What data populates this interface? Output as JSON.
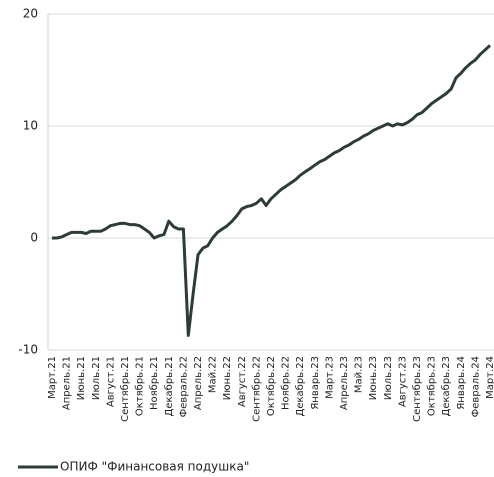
{
  "chart_data": {
    "type": "line",
    "categories": [
      "Март.21",
      null,
      null,
      "Апрель.21",
      null,
      null,
      "Июнь.21",
      null,
      null,
      "Июль.21",
      null,
      null,
      "Август.21",
      null,
      null,
      "Сентябрь.21",
      null,
      null,
      "Октябрь.21",
      null,
      null,
      "Ноябрь.21",
      null,
      null,
      "Декабрь.21",
      null,
      null,
      "Февраль.22",
      null,
      null,
      "Апрель.22",
      null,
      null,
      "Май.22",
      null,
      null,
      "Июнь.22",
      null,
      null,
      "Август.22",
      null,
      null,
      "Сентябрь.22",
      null,
      null,
      "Октябрь.22",
      null,
      null,
      "Ноябрь.22",
      null,
      null,
      "Декабрь.22",
      null,
      null,
      "Январь.23",
      null,
      null,
      "Март.23",
      null,
      null,
      "Апрель.23",
      null,
      null,
      "Май.23",
      null,
      null,
      "Июнь.23",
      null,
      null,
      "Июль.23",
      null,
      null,
      "Август.23",
      null,
      null,
      "Сентябрь.23",
      null,
      null,
      "Октябрь.23",
      null,
      null,
      "Декабрь.23",
      null,
      null,
      "Январь.24",
      null,
      null,
      "Февраль.24",
      null,
      null,
      "Март.24"
    ],
    "series": [
      {
        "name": "ОПИФ \"Финансовая подушка\"",
        "color": "#2e3b3b",
        "values": [
          0,
          0,
          0.1,
          0.3,
          0.5,
          0.5,
          0.5,
          0.4,
          0.6,
          0.6,
          0.6,
          0.8,
          1.1,
          1.2,
          1.3,
          1.3,
          1.2,
          1.2,
          1.1,
          0.8,
          0.5,
          0,
          0.2,
          0.3,
          1.5,
          1.0,
          0.8,
          0.8,
          -8.7,
          -5.0,
          -1.5,
          -0.9,
          -0.7,
          0,
          0.5,
          0.8,
          1.1,
          1.5,
          2.0,
          2.6,
          2.8,
          2.9,
          3.1,
          3.5,
          2.9,
          3.5,
          3.9,
          4.3,
          4.6,
          4.9,
          5.2,
          5.6,
          5.9,
          6.2,
          6.5,
          6.8,
          7.0,
          7.3,
          7.6,
          7.8,
          8.1,
          8.3,
          8.6,
          8.8,
          9.1,
          9.3,
          9.6,
          9.8,
          10.0,
          10.2,
          10.0,
          10.2,
          10.1,
          10.3,
          10.6,
          11.0,
          11.2,
          11.6,
          12.0,
          12.3,
          12.6,
          12.9,
          13.3,
          14.3,
          14.7,
          15.2,
          15.6,
          15.9,
          16.4,
          16.8,
          17.2
        ]
      }
    ],
    "ylim": [
      -10,
      20
    ],
    "yticks": [
      -10,
      0,
      10,
      20
    ],
    "grid": true
  }
}
